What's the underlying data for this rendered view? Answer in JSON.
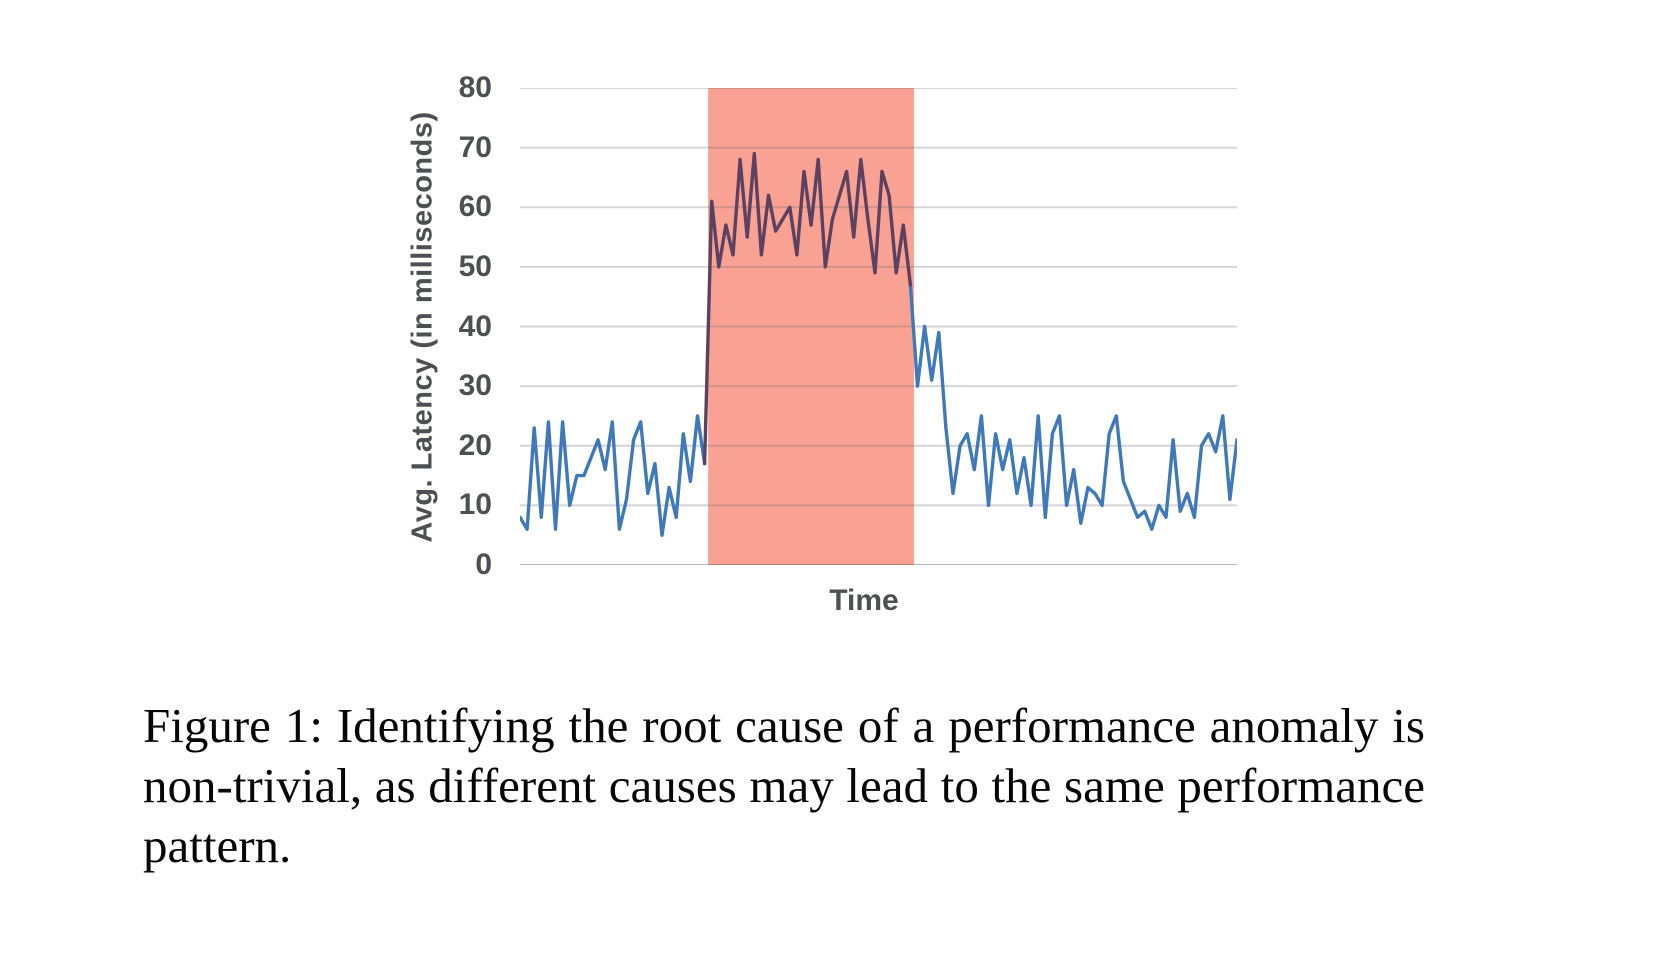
{
  "figure": {
    "caption_lines": [
      "Figure 1: Identifying the root cause of a performance anomaly is",
      "non-trivial, as different causes may lead to the same performance",
      "pattern."
    ]
  },
  "chart_data": {
    "type": "line",
    "title": "",
    "xlabel": "Time",
    "ylabel": "Avg. Latency (in milliseconds)",
    "ylim": [
      0,
      80
    ],
    "yticks": [
      0,
      10,
      20,
      30,
      40,
      50,
      60,
      70,
      80
    ],
    "xticks": [],
    "grid": true,
    "legend": "none",
    "series": [
      {
        "name": "Avg. Latency",
        "values": [
          8,
          6,
          23,
          8,
          24,
          6,
          24,
          10,
          15,
          15,
          18,
          21,
          16,
          24,
          6,
          11,
          21,
          24,
          12,
          17,
          5,
          13,
          8,
          22,
          14,
          25,
          17,
          61,
          50,
          57,
          52,
          68,
          55,
          69,
          52,
          62,
          56,
          58,
          60,
          52,
          66,
          57,
          68,
          50,
          58,
          62,
          66,
          55,
          68,
          58,
          49,
          66,
          62,
          49,
          57,
          47,
          30,
          40,
          31,
          39,
          23,
          12,
          20,
          22,
          16,
          25,
          10,
          22,
          16,
          21,
          12,
          18,
          10,
          25,
          8,
          22,
          25,
          10,
          16,
          7,
          13,
          12,
          10,
          22,
          25,
          14,
          11,
          8,
          9,
          6,
          10,
          8,
          21,
          9,
          12,
          8,
          20,
          22,
          19,
          25,
          11,
          21
        ]
      }
    ],
    "anomaly_region": {
      "start_index": 27,
      "end_index": 55,
      "description": "highlighted anomaly window where latency jumps from ~5-25 ms to ~50-69 ms"
    },
    "colors": {
      "line_normal": "#3f79b9",
      "line_anomaly": "#5c4161",
      "highlight": "#f9a294",
      "gridline": "#d9d9d9",
      "axis_text": "#4d4f53"
    }
  }
}
